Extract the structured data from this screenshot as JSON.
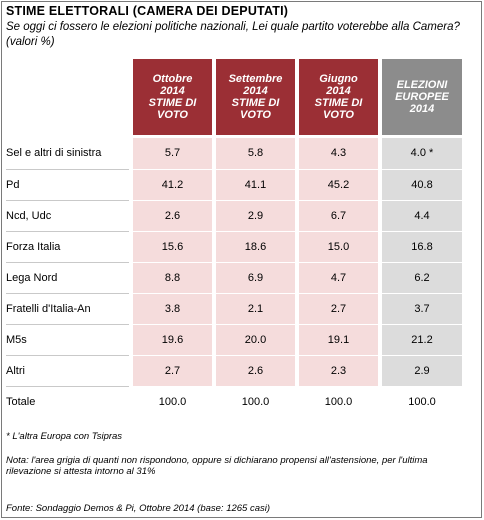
{
  "title": "STIME ELETTORALI (CAMERA DEI DEPUTATI)",
  "subtitle": "Se oggi ci fossero le elezioni politiche nazionali, Lei quale partito voterebbe alla Camera? (valori %)",
  "colors": {
    "header_red": "#9b2f35",
    "header_gray": "#8c8c8c",
    "cell_pink": "#f5dcdc",
    "cell_gray": "#dcdcdc"
  },
  "columns": [
    {
      "line1": "Ottobre",
      "line2": "2014",
      "line3": "STIME DI",
      "line4": "VOTO"
    },
    {
      "line1": "Settembre",
      "line2": "2014",
      "line3": "STIME DI",
      "line4": "VOTO"
    },
    {
      "line1": "Giugno",
      "line2": "2014",
      "line3": "STIME DI",
      "line4": "VOTO"
    },
    {
      "line1": "ELEZIONI",
      "line2": "EUROPEE",
      "line3": "2014",
      "line4": ""
    }
  ],
  "rows": [
    {
      "party": "Sel e altri di sinistra",
      "values": [
        "5.7",
        "5.8",
        "4.3",
        "4.0 *"
      ]
    },
    {
      "party": "Pd",
      "values": [
        "41.2",
        "41.1",
        "45.2",
        "40.8"
      ]
    },
    {
      "party": "Ncd, Udc",
      "values": [
        "2.6",
        "2.9",
        "6.7",
        "4.4"
      ]
    },
    {
      "party": "Forza Italia",
      "values": [
        "15.6",
        "18.6",
        "15.0",
        "16.8"
      ]
    },
    {
      "party": "Lega Nord",
      "values": [
        "8.8",
        "6.9",
        "4.7",
        "6.2"
      ]
    },
    {
      "party": "Fratelli d'Italia-An",
      "values": [
        "3.8",
        "2.1",
        "2.7",
        "3.7"
      ]
    },
    {
      "party": "M5s",
      "values": [
        "19.6",
        "20.0",
        "19.1",
        "21.2"
      ]
    },
    {
      "party": "Altri",
      "values": [
        "2.7",
        "2.6",
        "2.3",
        "2.9"
      ]
    }
  ],
  "total": {
    "label": "Totale",
    "values": [
      "100.0",
      "100.0",
      "100.0",
      "100.0"
    ]
  },
  "footnote": "* L'altra Europa con Tsipras",
  "note": "Nota: l'area grigia di quanti non rispondono, oppure si dichiarano propensi all'astensione, per l'ultima rilevazione si attesta intorno al 31%",
  "source": "Fonte: Sondaggio Demos & Pi, Ottobre 2014 (base: 1265 casi)"
}
